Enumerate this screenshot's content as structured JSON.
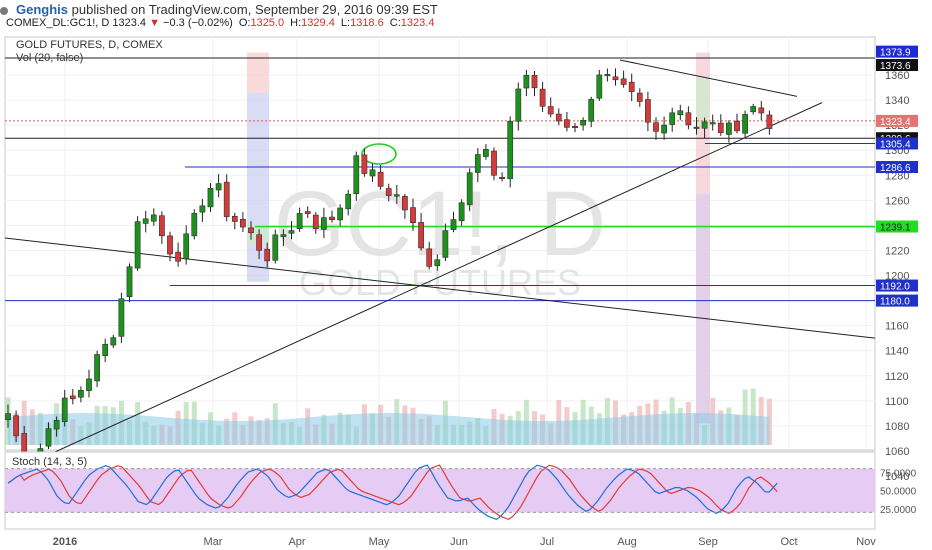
{
  "header": {
    "user": "Genghis",
    "published_text": "published on TradingView.com, September 29, 2016 09:39 EST",
    "symbol": "COMEX_DL:GC1!, D",
    "last": "1323.4",
    "change": "−0.3 (−0.02%)",
    "o_label": "O:",
    "o_value": "1325.0",
    "h_label": "H:",
    "h_value": "1329.4",
    "l_label": "L:",
    "l_value": "1318.6",
    "c_label": "C:",
    "c_value": "1323.4"
  },
  "chart_data": {
    "type": "candlestick",
    "title": "GOLD FUTURES, D, COMEX",
    "volume_label": "Vol (20, false)",
    "watermark_main": "GC1!, D",
    "watermark_sub": "GOLD FUTURES",
    "ylim": [
      1032,
      1382
    ],
    "y_ticks": [
      1040,
      1060,
      1080,
      1100,
      1120,
      1140,
      1160,
      1180,
      1200,
      1220,
      1240,
      1260,
      1280,
      1300,
      1320,
      1340,
      1360
    ],
    "x_ticks": [
      "2016",
      "Mar",
      "Apr",
      "May",
      "Jun",
      "Jul",
      "Aug",
      "Sep",
      "Oct",
      "Nov"
    ],
    "ohlc_anchor_path": [
      1090,
      1060,
      1050,
      1075,
      1095,
      1100,
      1115,
      1135,
      1150,
      1190,
      1240,
      1255,
      1230,
      1215,
      1230,
      1260,
      1275,
      1250,
      1240,
      1230,
      1215,
      1230,
      1240,
      1255,
      1240,
      1245,
      1260,
      1290,
      1282,
      1270,
      1265,
      1250,
      1220,
      1208,
      1240,
      1260,
      1290,
      1300,
      1260,
      1330,
      1365,
      1340,
      1330,
      1325,
      1315,
      1340,
      1360,
      1350,
      1345,
      1335,
      1310,
      1330,
      1335,
      1320,
      1320,
      1318,
      1315,
      1330,
      1335,
      1323
    ],
    "horizontal_levels": [
      {
        "price": 1373.9,
        "label": "1373.9",
        "kind": "price"
      },
      {
        "price": 1373.6,
        "label": "1373.6",
        "kind": "black"
      },
      {
        "price": 1323.4,
        "label": "1323.4",
        "kind": "last"
      },
      {
        "price": 1309.6,
        "label": "1309.6",
        "kind": "black"
      },
      {
        "price": 1305.4,
        "label": "1305.4",
        "kind": "blue"
      },
      {
        "price": 1286.6,
        "label": "1286.6",
        "kind": "blue"
      },
      {
        "price": 1239.1,
        "label": "1239.1",
        "kind": "green"
      },
      {
        "price": 1192.0,
        "label": "1192.0",
        "kind": "blue"
      },
      {
        "price": 1180.0,
        "label": "1180.0",
        "kind": "blue"
      }
    ],
    "stoch": {
      "label": "Stoch (14, 3, 5)",
      "ylim": [
        0,
        100
      ],
      "ticks": [
        25,
        50,
        75
      ],
      "tick_labels": [
        "25.0000",
        "50.0000",
        "75.0000"
      ],
      "bands": [
        20,
        80
      ],
      "k_anchor_path": [
        60,
        70,
        75,
        80,
        65,
        40,
        30,
        50,
        70,
        80,
        85,
        70,
        55,
        35,
        30,
        50,
        70,
        80,
        60,
        40,
        30,
        25,
        40,
        60,
        75,
        80,
        70,
        50,
        40,
        45,
        60,
        75,
        80,
        65,
        50,
        45,
        40,
        35,
        30,
        40,
        60,
        80,
        85,
        60,
        40,
        35,
        40,
        25,
        15,
        10,
        25,
        50,
        75,
        85,
        80,
        65,
        45,
        30,
        20,
        35,
        55,
        70,
        80,
        75,
        60,
        45,
        50,
        55,
        50,
        40,
        25,
        18,
        30,
        55,
        70,
        60,
        45,
        60
      ]
    }
  }
}
